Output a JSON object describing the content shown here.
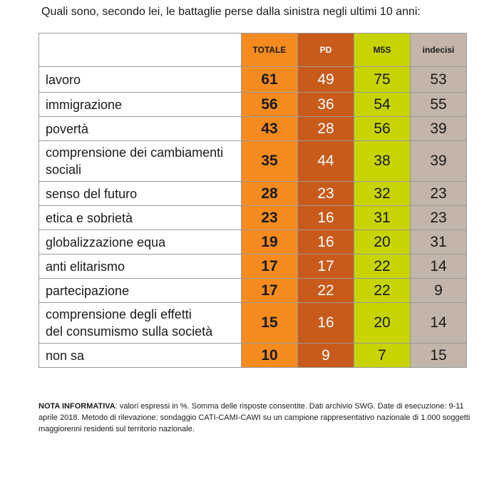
{
  "title": "Quali sono, secondo lei, le battaglie perse dalla sinistra negli ultimi 10 anni:",
  "colors": {
    "totale": "#f58b1f",
    "pd": "#c85a1a",
    "m5s": "#c7d400",
    "indecisi": "#c3b5a9"
  },
  "chart_data": {
    "type": "table",
    "title": "Quali sono, secondo lei, le battaglie perse dalla sinistra negli ultimi 10 anni:",
    "columns": [
      "TOTALE",
      "PD",
      "M5S",
      "indecisi"
    ],
    "rows": [
      {
        "label": "lavoro",
        "values": [
          "61",
          "49",
          "75",
          "53"
        ]
      },
      {
        "label": "immigrazione",
        "values": [
          "56",
          "36",
          "54",
          "55"
        ]
      },
      {
        "label": "povertà",
        "values": [
          "43",
          "28",
          "56",
          "39"
        ]
      },
      {
        "label": "comprensione dei cambiamenti\nsociali",
        "values": [
          "35",
          "44",
          "38",
          "39"
        ]
      },
      {
        "label": "senso del futuro",
        "values": [
          "28",
          "23",
          "32",
          "23"
        ]
      },
      {
        "label": "etica e sobrietà",
        "values": [
          "23",
          "16",
          "31",
          "23"
        ]
      },
      {
        "label": "globalizzazione equa",
        "values": [
          "19",
          "16",
          "20",
          "31"
        ]
      },
      {
        "label": "anti elitarismo",
        "values": [
          "17",
          "17",
          "22",
          "14"
        ]
      },
      {
        "label": "partecipazione",
        "values": [
          "17",
          "22",
          "22",
          "9"
        ]
      },
      {
        "label": "comprensione degli effetti\ndel consumismo sulla società",
        "values": [
          "15",
          "16",
          "20",
          "14"
        ]
      },
      {
        "label": "non sa",
        "values": [
          "10",
          "9",
          "7",
          "15"
        ]
      }
    ]
  },
  "nota": {
    "label": "NOTA INFORMATIVA",
    "text": ": valori espressi in %. Somma delle risposte consentite. Dati archivio SWG. Date di esecuzione: 9-11 aprile 2018. Metodo di rilevazione: sondaggio CATI-CAMI-CAWI su un campione rappresentativo nazionale di 1.000 soggetti maggiorenni residenti sul territorio nazionale."
  }
}
